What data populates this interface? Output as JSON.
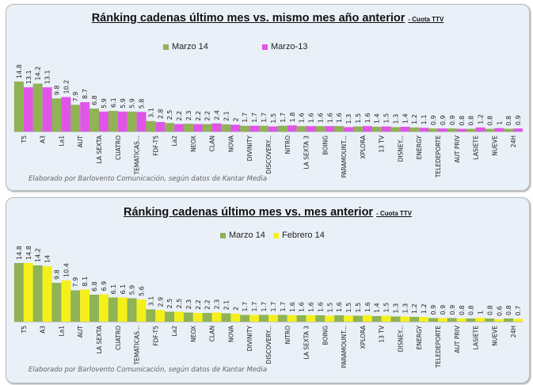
{
  "chart_data": [
    {
      "type": "bar",
      "title": "Ránking cadenas último mes vs. mismo mes año anterior",
      "subtitle": "- Cuota TTV",
      "categories": [
        "T5",
        "A3",
        "La1",
        "AUT",
        "LA SEXTA",
        "CUATRO",
        "TEMATICAS...",
        "FDF-T5",
        "La2",
        "NEOX",
        "CLAN",
        "NOVA",
        "DIVINITY",
        "DISCOVERY...",
        "NITRO",
        "LA SEXTA 3",
        "BOING",
        "PARAMOUNT...",
        "XPLORA",
        "13 TV",
        "DISNEY...",
        "ENERGY",
        "TELEDEPORTE",
        "AUT PRIV",
        "LASIETE",
        "NUEVE",
        "24H"
      ],
      "series": [
        {
          "name": "Marzo 14",
          "color": "#8fb355",
          "values": [
            14.8,
            14.2,
            9.8,
            7.9,
            6.8,
            6.1,
            5.9,
            3.1,
            2.5,
            2.3,
            2.2,
            2.1,
            1.7,
            1.7,
            1.7,
            1.6,
            1.6,
            1.6,
            1.5,
            1.4,
            1.3,
            1.2,
            0.9,
            0.9,
            0.8,
            0.8,
            0.8
          ]
        },
        {
          "name": "Marzo-13",
          "color": "#e055e8",
          "values": [
            13.1,
            13.1,
            10.2,
            8.7,
            5.9,
            5.9,
            5.8,
            2.8,
            2.2,
            2.2,
            2.4,
            2,
            1.7,
            1.5,
            1.8,
            1.6,
            1.6,
            1.3,
            1.6,
            1.5,
            1.4,
            1.1,
            0.9,
            0.8,
            1.2,
            1,
            0.9
          ]
        }
      ],
      "footnote": "Elaborado por Barlovento Comunicación, según datos de Kantar Media",
      "legend_position": "top",
      "grid": false
    },
    {
      "type": "bar",
      "title": "Ránking cadenas último mes vs. mes anterior",
      "subtitle": "- Cuota TTV",
      "categories": [
        "T5",
        "A3",
        "La1",
        "AUT",
        "LA SEXTA",
        "CUATRO",
        "TEMATICAS...",
        "FDF-T5",
        "La2",
        "NEOX",
        "CLAN",
        "NOVA",
        "DIVINITY",
        "DISCOVERY...",
        "NITRO",
        "LA SEXTA 3",
        "BOING",
        "PARAMOUNT...",
        "XPLORA",
        "13 TV",
        "DISNEY...",
        "ENERGY",
        "TELEDEPORTE",
        "AUT PRIV",
        "LASIETE",
        "NUEVE",
        "24H"
      ],
      "series": [
        {
          "name": "Marzo 14",
          "color": "#8fb355",
          "values": [
            14.8,
            14.2,
            9.8,
            7.9,
            6.8,
            6.1,
            5.9,
            3.1,
            2.5,
            2.3,
            2.2,
            2.1,
            1.7,
            1.7,
            1.7,
            1.6,
            1.6,
            1.6,
            1.5,
            1.4,
            1.3,
            1.2,
            0.9,
            0.9,
            0.8,
            0.8,
            0.8
          ]
        },
        {
          "name": "Febrero 14",
          "color": "#f5f01c",
          "values": [
            14.8,
            14,
            10.4,
            8.1,
            6.9,
            6.1,
            5.6,
            2.9,
            2.5,
            2.2,
            2.3,
            2,
            1.7,
            1.7,
            1.6,
            1.6,
            1.5,
            1.5,
            1.6,
            1.5,
            1.3,
            1.2,
            0.9,
            0.8,
            1,
            0.6,
            0.7
          ]
        }
      ],
      "footnote": "Elaborado por Barlovento Comunicación, según datos de Kantar Media",
      "legend_position": "top",
      "grid": false
    }
  ]
}
